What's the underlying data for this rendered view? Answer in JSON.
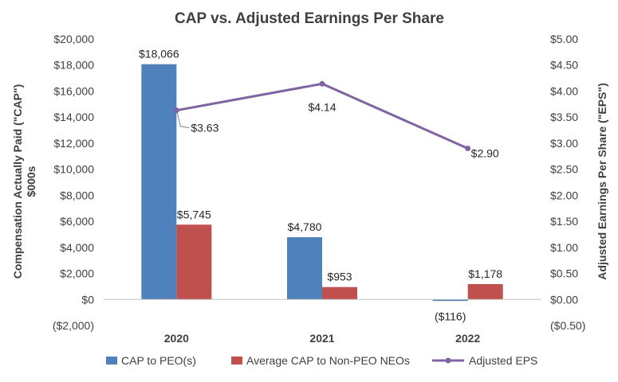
{
  "chart_data": {
    "type": "bar",
    "title": "CAP vs. Adjusted Earnings Per Share",
    "categories": [
      "2020",
      "2021",
      "2022"
    ],
    "ylabel": "Compensation Actually Paid (\"CAP\")",
    "ylabel_line2": "$000s",
    "y2label": "Adjusted Earnings Per Share (\"EPS\")",
    "ylim": [
      -2000,
      20000
    ],
    "y2lim": [
      -0.5,
      5.0
    ],
    "yticks": [
      -2000,
      0,
      2000,
      4000,
      6000,
      8000,
      10000,
      12000,
      14000,
      16000,
      18000,
      20000
    ],
    "yticks_labels": [
      "($2,000)",
      "$0",
      "$2,000",
      "$4,000",
      "$6,000",
      "$8,000",
      "$10,000",
      "$12,000",
      "$14,000",
      "$16,000",
      "$18,000",
      "$20,000"
    ],
    "y2ticks": [
      -0.5,
      0,
      0.5,
      1.0,
      1.5,
      2.0,
      2.5,
      3.0,
      3.5,
      4.0,
      4.5,
      5.0
    ],
    "y2ticks_labels": [
      "($0.50)",
      "$0.00",
      "$0.50",
      "$1.00",
      "$1.50",
      "$2.00",
      "$2.50",
      "$3.00",
      "$3.50",
      "$4.00",
      "$4.50",
      "$5.00"
    ],
    "grid": false,
    "legend_position": "bottom",
    "series": [
      {
        "name": "CAP to PEO(s)",
        "kind": "bar",
        "axis": "left",
        "color": "#4F81BD",
        "values": [
          18066,
          4780,
          -116
        ],
        "labels": [
          "$18,066",
          "$4,780",
          "($116)"
        ]
      },
      {
        "name": "Average CAP to Non-PEO NEOs",
        "kind": "bar",
        "axis": "left",
        "color": "#C0504D",
        "values": [
          5745,
          953,
          1178
        ],
        "labels": [
          "$5,745",
          "$953",
          "$1,178"
        ]
      },
      {
        "name": "Adjusted EPS",
        "kind": "line",
        "axis": "right",
        "color": "#8064A2",
        "values": [
          3.63,
          4.14,
          2.9
        ],
        "labels": [
          "$3.63",
          "$4.14",
          "$2.90"
        ]
      }
    ]
  }
}
